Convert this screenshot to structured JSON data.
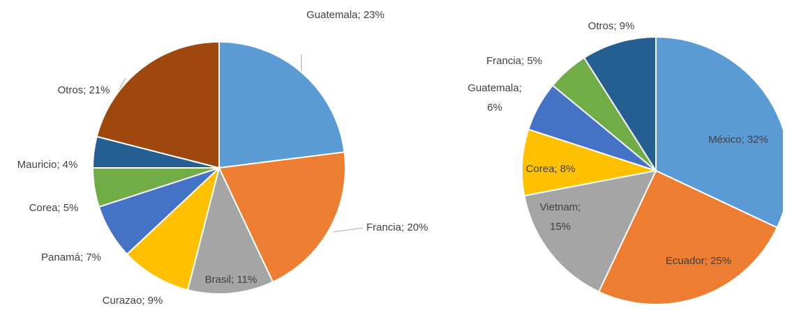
{
  "chart_data": [
    {
      "type": "pie",
      "categories": [
        "Guatemala",
        "Francia",
        "Brasil",
        "Curazao",
        "Panamá",
        "Corea",
        "Mauricio",
        "Otros"
      ],
      "values": [
        23,
        20,
        11,
        9,
        7,
        5,
        4,
        21
      ],
      "value_labels": [
        [
          "Guatemala; 23%"
        ],
        [
          "Francia; 20%"
        ],
        [
          "Brasil; 11%"
        ],
        [
          "Curazao; 9%"
        ],
        [
          "Panamá; 7%"
        ],
        [
          "Corea; 5%"
        ],
        [
          "Mauricio; 4%"
        ],
        [
          "Otros; 21%"
        ]
      ],
      "colors": [
        "#5b9bd5",
        "#ed7d31",
        "#a5a5a5",
        "#ffc000",
        "#4472c4",
        "#70ad47",
        "#255e91",
        "#9e480e"
      ]
    },
    {
      "type": "pie",
      "categories": [
        "México",
        "Ecuador",
        "Vietnam",
        "Corea",
        "Guatemala",
        "Francia",
        "Otros"
      ],
      "values": [
        32,
        25,
        15,
        8,
        6,
        5,
        9
      ],
      "value_labels": [
        [
          "México; 32%"
        ],
        [
          "Ecuador; 25%"
        ],
        [
          "Vietnam;",
          "15%"
        ],
        [
          "Corea; 8%"
        ],
        [
          "Guatemala;",
          "6%"
        ],
        [
          "Francia; 5%"
        ],
        [
          "Otros; 9%"
        ]
      ],
      "colors": [
        "#5b9bd5",
        "#ed7d31",
        "#a5a5a5",
        "#ffc000",
        "#4472c4",
        "#70ad47",
        "#255e91"
      ]
    }
  ]
}
